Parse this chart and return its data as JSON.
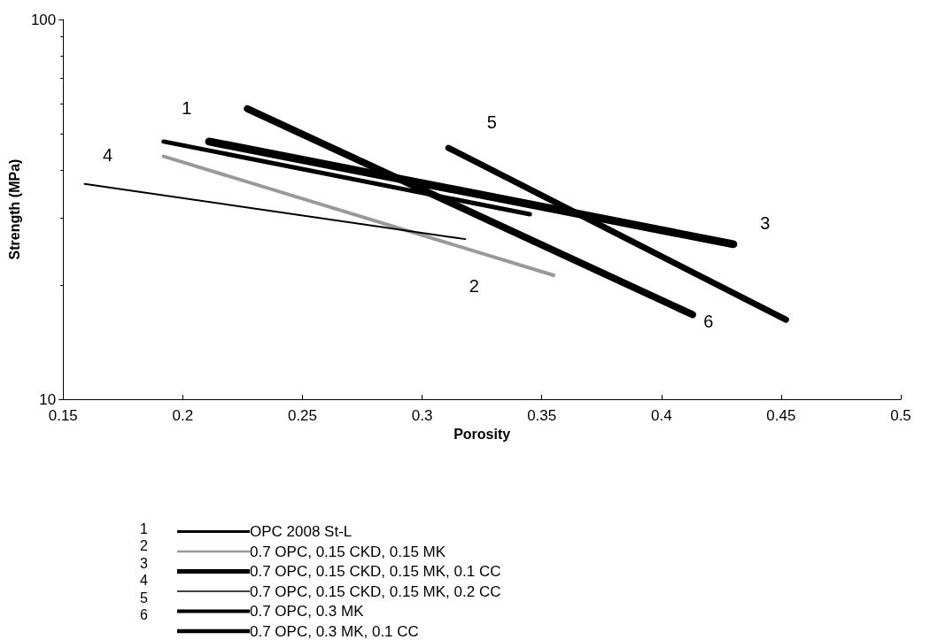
{
  "chart_data": {
    "type": "line",
    "xlabel": "Porosity",
    "ylabel": "Strength (MPa)",
    "xlim": [
      0.15,
      0.5
    ],
    "xticks": [
      0.15,
      0.2,
      0.25,
      0.3,
      0.35,
      0.4,
      0.45,
      0.5
    ],
    "ylim": [
      10,
      100
    ],
    "yticks": [
      10,
      100
    ],
    "log": "y",
    "grid": false,
    "legend": "bottom",
    "marker": "none",
    "line_style": "solid",
    "series": [
      {
        "name": "OPC 2008 St-L",
        "color": "#000000",
        "x": [
          0.192,
          0.345
        ],
        "values": [
          47.7,
          30.7
        ]
      },
      {
        "name": "0.7 OPC, 0.15 CKD, 0.15 MK",
        "color": "#999999",
        "x": [
          0.192,
          0.355
        ],
        "values": [
          43.6,
          21.2
        ]
      },
      {
        "name": "0.7 OPC, 0.15 CKD, 0.15 MK, 0.1 CC",
        "color": "#000000",
        "x": [
          0.211,
          0.43
        ],
        "values": [
          47.7,
          25.6
        ]
      },
      {
        "name": "0.7 OPC, 0.15 CKD, 0.15 MK, 0.2 CC",
        "color": "#000000",
        "x": [
          0.159,
          0.318
        ],
        "values": [
          36.9,
          26.4
        ]
      },
      {
        "name": "0.7 OPC, 0.3 MK",
        "color": "#000000",
        "x": [
          0.311,
          0.452
        ],
        "values": [
          45.9,
          16.2
        ]
      },
      {
        "name": "0.7 OPC, 0.3 MK, 0.1 CC",
        "color": "#000000",
        "x": [
          0.227,
          0.413
        ],
        "values": [
          58.2,
          16.7
        ]
      }
    ],
    "annotations": [
      "1",
      "2",
      "3",
      "4",
      "5",
      "6"
    ]
  }
}
